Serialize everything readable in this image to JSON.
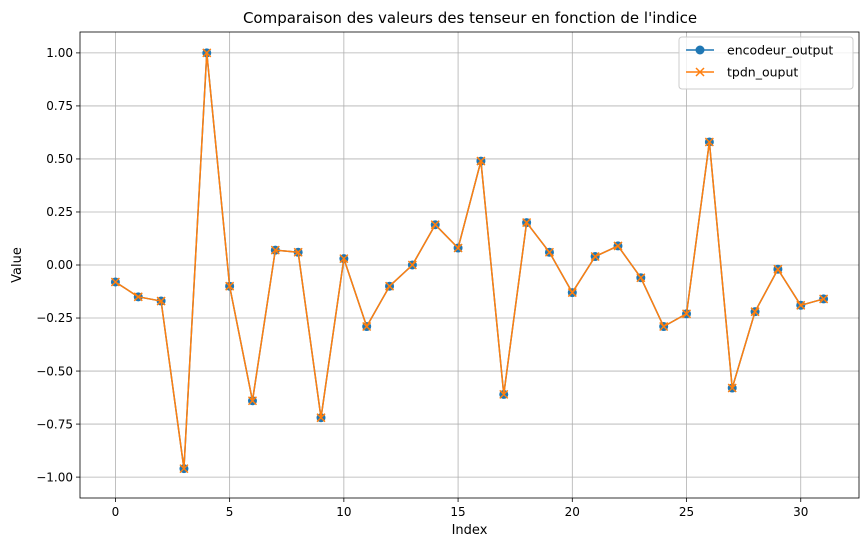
{
  "chart_data": {
    "type": "line",
    "title": "Comparaison des valeurs des tenseur en fonction de l'indice",
    "xlabel": "Index",
    "ylabel": "Value",
    "xlim": [
      -1.55,
      32.55
    ],
    "ylim": [
      -1.0985,
      1.0985
    ],
    "xticks": [
      0,
      5,
      10,
      15,
      20,
      25,
      30
    ],
    "xtick_labels": [
      "0",
      "5",
      "10",
      "15",
      "20",
      "25",
      "30"
    ],
    "yticks": [
      -1.0,
      -0.75,
      -0.5,
      -0.25,
      0.0,
      0.25,
      0.5,
      0.75,
      1.0
    ],
    "ytick_labels": [
      "−1.00",
      "−0.75",
      "−0.50",
      "−0.25",
      "0.00",
      "0.25",
      "0.50",
      "0.75",
      "1.00"
    ],
    "grid": true,
    "legend_position": "top-right",
    "x": [
      0,
      1,
      2,
      3,
      4,
      5,
      6,
      7,
      8,
      9,
      10,
      11,
      12,
      13,
      14,
      15,
      16,
      17,
      18,
      19,
      20,
      21,
      22,
      23,
      24,
      25,
      26,
      27,
      28,
      29,
      30,
      31
    ],
    "series": [
      {
        "name": "encodeur_output",
        "color": "#1f77b4",
        "marker": "circle",
        "values": [
          -0.08,
          -0.15,
          -0.17,
          -0.96,
          1.0,
          -0.1,
          -0.64,
          0.07,
          0.06,
          -0.72,
          0.03,
          -0.29,
          -0.1,
          0.0,
          0.19,
          0.08,
          0.49,
          -0.61,
          0.2,
          0.06,
          -0.13,
          0.04,
          0.09,
          -0.06,
          -0.29,
          -0.23,
          0.58,
          -0.58,
          -0.22,
          -0.02,
          -0.19,
          -0.16
        ]
      },
      {
        "name": "tpdn_ouput",
        "color": "#ff7f0e",
        "marker": "x",
        "values": [
          -0.08,
          -0.15,
          -0.17,
          -0.96,
          1.0,
          -0.1,
          -0.64,
          0.07,
          0.06,
          -0.72,
          0.03,
          -0.29,
          -0.1,
          0.0,
          0.19,
          0.08,
          0.49,
          -0.61,
          0.2,
          0.06,
          -0.13,
          0.04,
          0.09,
          -0.06,
          -0.29,
          -0.23,
          0.58,
          -0.58,
          -0.22,
          -0.02,
          -0.19,
          -0.16
        ]
      }
    ]
  }
}
